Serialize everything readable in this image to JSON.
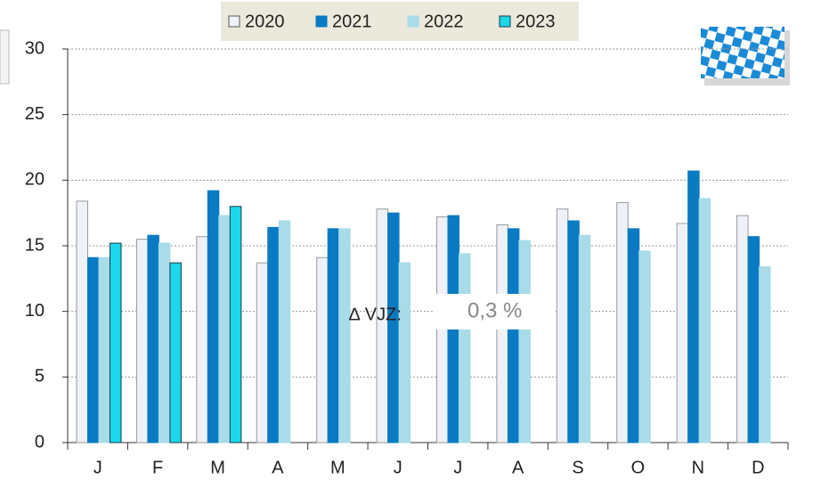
{
  "chart_data": {
    "type": "bar",
    "categories": [
      "J",
      "F",
      "M",
      "A",
      "M",
      "J",
      "J",
      "A",
      "S",
      "O",
      "N",
      "D"
    ],
    "series": [
      {
        "name": "2020",
        "color": "#eef2f8",
        "values": [
          18.4,
          15.5,
          15.7,
          13.7,
          14.1,
          17.8,
          17.2,
          16.6,
          17.8,
          18.3,
          16.7,
          17.3
        ]
      },
      {
        "name": "2021",
        "color": "#0a7bc2",
        "values": [
          14.1,
          15.8,
          19.2,
          16.4,
          16.3,
          17.5,
          17.3,
          16.3,
          16.9,
          16.3,
          20.7,
          15.7
        ]
      },
      {
        "name": "2022",
        "color": "#a9dbe9",
        "values": [
          14.1,
          15.2,
          17.3,
          16.9,
          16.3,
          13.7,
          14.4,
          15.4,
          15.8,
          14.6,
          18.6,
          13.4
        ]
      },
      {
        "name": "2023",
        "color": "#1ad8ea",
        "values": [
          15.2,
          13.7,
          18.0,
          null,
          null,
          null,
          null,
          null,
          null,
          null,
          null,
          null
        ]
      }
    ],
    "ylim": [
      0,
      30
    ],
    "yticks": [
      0,
      5,
      10,
      15,
      20,
      25,
      30
    ],
    "grid": true,
    "annotation_label": "∆ VJZ:",
    "annotation_value": "0,3 %"
  }
}
